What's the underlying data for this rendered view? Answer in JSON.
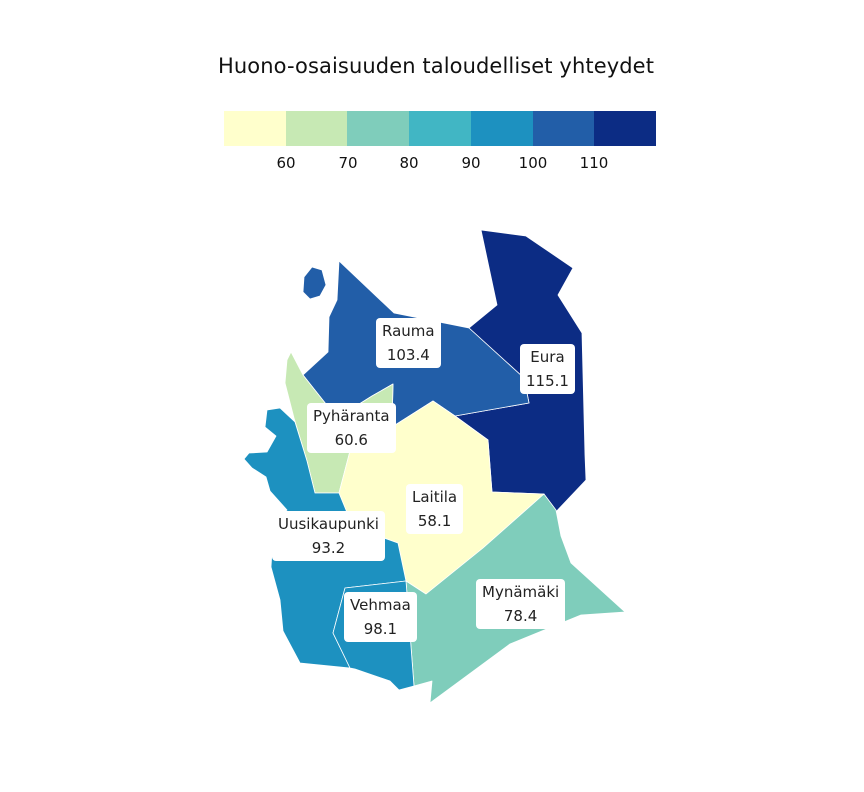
{
  "title": "Huono-osaisuuden taloudelliset yhteydet",
  "legend": {
    "colors": [
      "#ffffcc",
      "#c7e9b4",
      "#7fcdbb",
      "#41b6c4",
      "#1d91c0",
      "#225ea8",
      "#0c2c84"
    ],
    "ticks": [
      "60",
      "70",
      "80",
      "90",
      "100",
      "110"
    ]
  },
  "regions": [
    {
      "name": "Rauma",
      "value": "103.4",
      "color": "#225ea8"
    },
    {
      "name": "Eura",
      "value": "115.1",
      "color": "#0c2c84"
    },
    {
      "name": "Pyhäranta",
      "value": "60.6",
      "color": "#c7e9b4"
    },
    {
      "name": "Laitila",
      "value": "58.1",
      "color": "#ffffcc"
    },
    {
      "name": "Uusikaupunki",
      "value": "93.2",
      "color": "#1d91c0"
    },
    {
      "name": "Vehmaa",
      "value": "98.1",
      "color": "#1d91c0"
    },
    {
      "name": "Mynämäki",
      "value": "78.4",
      "color": "#7fcdbb"
    }
  ]
}
